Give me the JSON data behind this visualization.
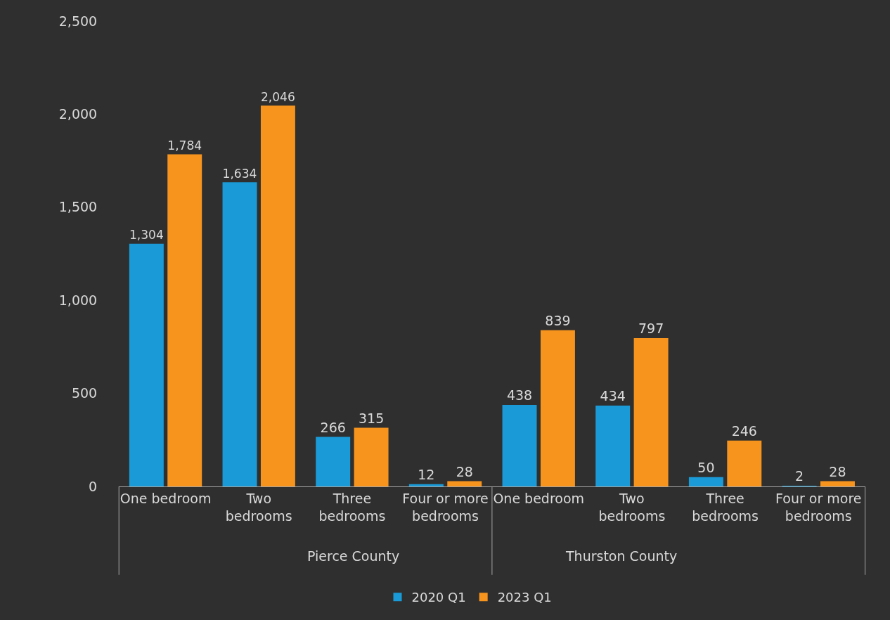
{
  "chart_data": {
    "type": "bar",
    "categories": [
      "One bedroom",
      "Two bedrooms",
      "Three bedrooms",
      "Four or more bedrooms",
      "One bedroom",
      "Two bedrooms",
      "Three bedrooms",
      "Four or more bedrooms"
    ],
    "series": [
      {
        "name": "2020 Q1",
        "color": "#1a9bd7",
        "values": [
          1304,
          1634,
          266,
          12,
          438,
          434,
          50,
          2
        ],
        "value_labels": [
          "1,304",
          "1,634",
          "266",
          "12",
          "438",
          "434",
          "50",
          "2"
        ]
      },
      {
        "name": "2023 Q1",
        "color": "#f7941d",
        "values": [
          1784,
          2046,
          315,
          28,
          839,
          797,
          246,
          28
        ],
        "value_labels": [
          "1,784",
          "2,046",
          "315",
          "28",
          "839",
          "797",
          "246",
          "28"
        ]
      }
    ],
    "annotations": [
      "Pierce County",
      "Thurston County"
    ],
    "ylim": [
      0,
      2500
    ],
    "yticks": [
      0,
      {
        "value": 500,
        "label": "500"
      },
      {
        "value": 1000,
        "label": "1,000"
      },
      {
        "value": 1500,
        "label": "1,500"
      },
      {
        "value": 2000,
        "label": "2,000"
      },
      {
        "value": 2500,
        "label": "2,500"
      }
    ],
    "grid": false,
    "legend": "bottom"
  }
}
